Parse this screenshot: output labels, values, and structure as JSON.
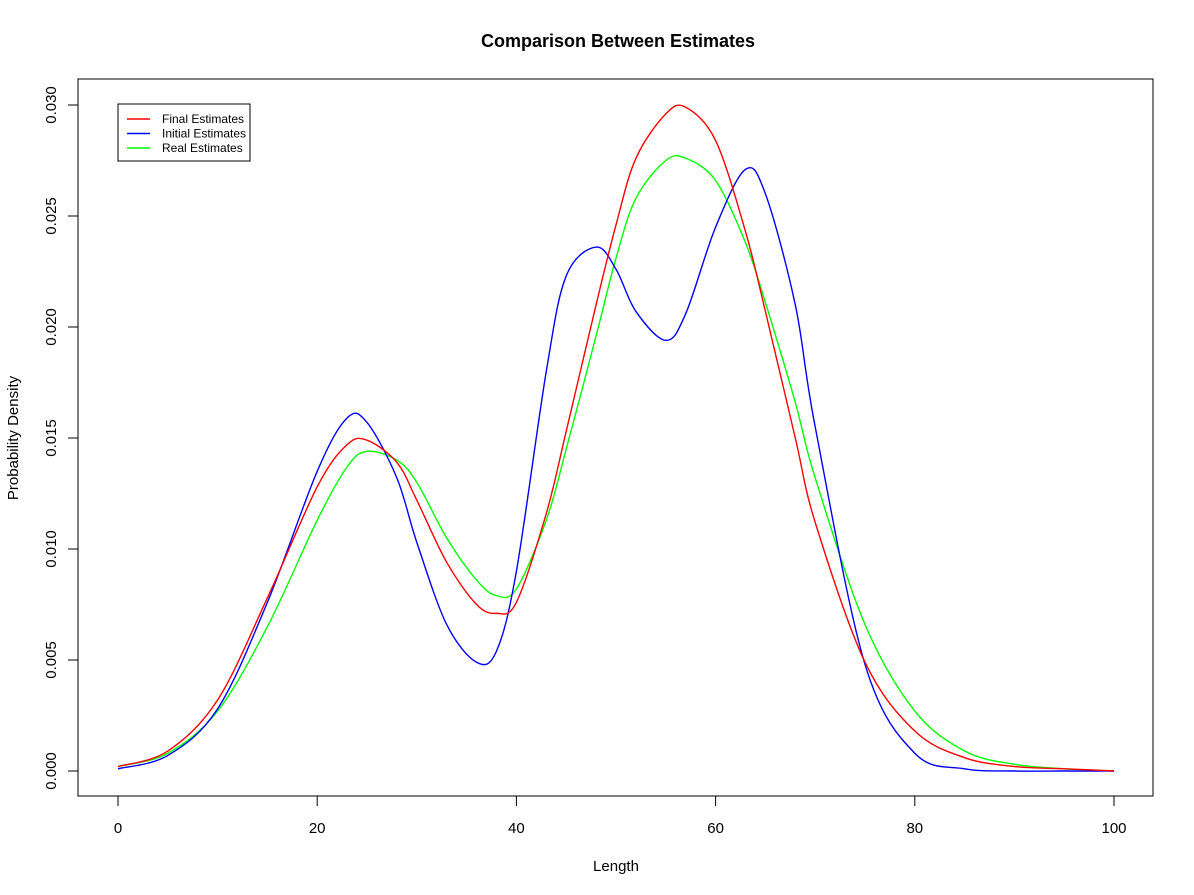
{
  "chart_data": {
    "type": "line",
    "title": "Comparison Between Estimates",
    "xlabel": "Length",
    "ylabel": "Probability Density",
    "xlim": [
      0,
      100
    ],
    "ylim": [
      0,
      0.03
    ],
    "x_ticks": [
      "0",
      "20",
      "40",
      "60",
      "80",
      "100"
    ],
    "y_ticks": [
      "0.000",
      "0.005",
      "0.010",
      "0.015",
      "0.020",
      "0.025",
      "0.030"
    ],
    "grid": false,
    "legend_position": "top-left",
    "x": [
      0,
      5,
      10,
      15,
      20,
      23,
      25,
      28,
      30,
      33,
      36,
      38,
      40,
      43,
      45,
      48,
      50,
      52,
      55,
      57,
      60,
      63,
      65,
      68,
      70,
      75,
      80,
      85,
      90,
      95,
      100
    ],
    "series": [
      {
        "name": "Final Estimates",
        "color": "#ff0000",
        "values": [
          0.0002,
          0.0009,
          0.0032,
          0.0078,
          0.0128,
          0.0147,
          0.0149,
          0.0139,
          0.0122,
          0.0094,
          0.0075,
          0.0071,
          0.0076,
          0.0116,
          0.0153,
          0.021,
          0.0246,
          0.0276,
          0.0296,
          0.0299,
          0.0284,
          0.0243,
          0.0207,
          0.015,
          0.0112,
          0.0049,
          0.0018,
          0.0006,
          0.0002,
          0.0001,
          0.0
        ]
      },
      {
        "name": "Initial Estimates",
        "color": "#0000ff",
        "values": [
          0.0001,
          0.0007,
          0.0028,
          0.0076,
          0.0135,
          0.0159,
          0.0157,
          0.0132,
          0.0103,
          0.0066,
          0.0049,
          0.0054,
          0.009,
          0.018,
          0.0223,
          0.0236,
          0.0226,
          0.0207,
          0.0194,
          0.0206,
          0.0245,
          0.0271,
          0.026,
          0.021,
          0.0155,
          0.0048,
          0.0008,
          0.0001,
          0.0,
          0.0,
          0.0
        ]
      },
      {
        "name": "Real Estimates",
        "color": "#00ff00",
        "values": [
          0.0002,
          0.0008,
          0.0027,
          0.0065,
          0.0113,
          0.0137,
          0.0144,
          0.014,
          0.013,
          0.0105,
          0.0086,
          0.0079,
          0.0082,
          0.0113,
          0.0145,
          0.0196,
          0.0231,
          0.0258,
          0.0275,
          0.0276,
          0.0266,
          0.0238,
          0.0211,
          0.0166,
          0.0132,
          0.0066,
          0.0027,
          0.0009,
          0.0003,
          0.0001,
          0.0
        ]
      }
    ]
  }
}
